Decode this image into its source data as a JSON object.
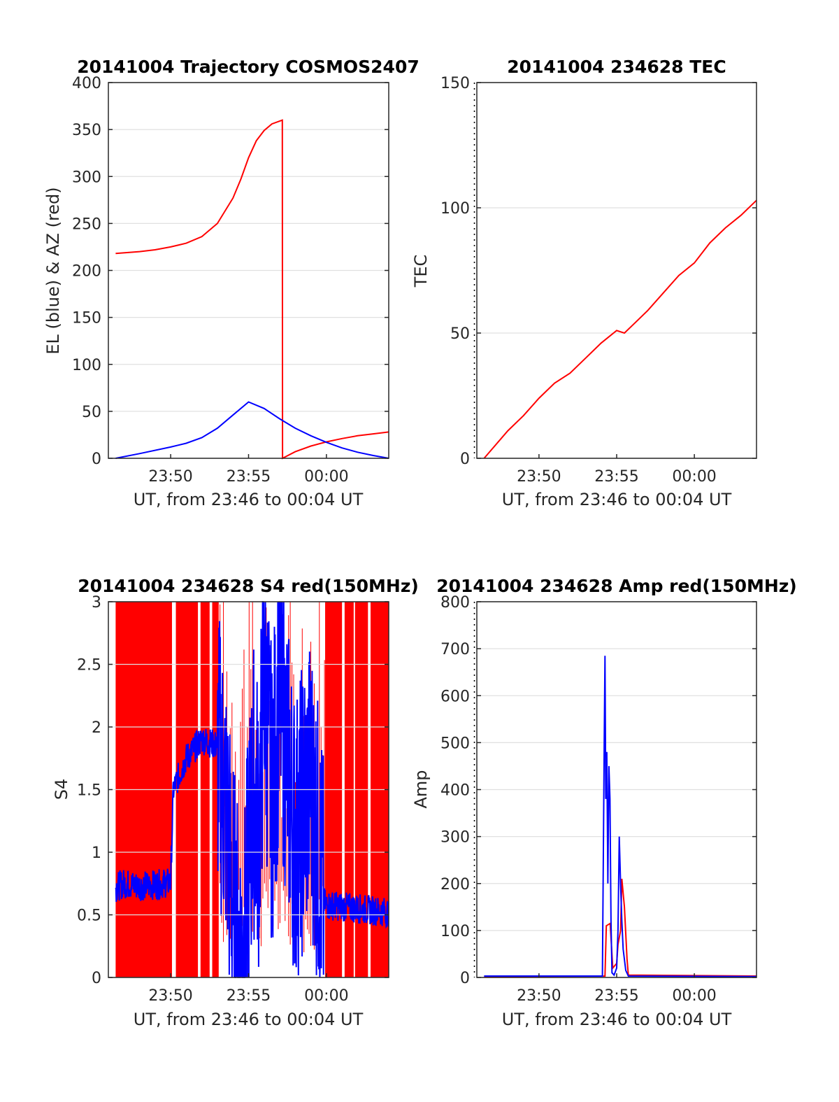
{
  "figure": {
    "background": "#ffffff"
  },
  "chart_data": [
    {
      "id": "trajectory",
      "type": "line",
      "title": "20141004 Trajectory COSMOS2407",
      "xlabel": "UT, from 23:46 to 00:04 UT",
      "ylabel": "EL (blue) & AZ (red)",
      "xlim": [
        "23:46",
        "00:04"
      ],
      "ylim": [
        0,
        400
      ],
      "yticks": [
        0,
        50,
        100,
        150,
        200,
        250,
        300,
        350,
        400
      ],
      "xticks": [
        "23:50",
        "23:55",
        "00:00"
      ],
      "x_grid_minutes": [
        23.5,
        24,
        25,
        26,
        27,
        28,
        29,
        30,
        31,
        32,
        33,
        34,
        35,
        36,
        37
      ],
      "grid": true,
      "series": [
        {
          "color": "#ff0000",
          "points": [
            [
              "23:46:28",
              218
            ],
            [
              "23:48",
              220
            ],
            [
              "23:49",
              222
            ],
            [
              "23:50",
              225
            ],
            [
              "23:51",
              229
            ],
            [
              "23:52",
              236
            ],
            [
              "23:53",
              250
            ],
            [
              "23:54",
              277
            ],
            [
              "23:54:30",
              297
            ],
            [
              "23:55",
              320
            ],
            [
              "23:55:30",
              338
            ],
            [
              "23:56",
              349
            ],
            [
              "23:56:30",
              356
            ],
            [
              "23:57:10",
              360
            ],
            [
              "23:57:11",
              0
            ],
            [
              "23:58",
              7
            ],
            [
              "23:59",
              13
            ],
            [
              "00:00",
              17.5
            ],
            [
              "00:01",
              21
            ],
            [
              "00:02",
              24
            ],
            [
              "00:03",
              26
            ],
            [
              "00:04",
              28
            ]
          ]
        },
        {
          "color": "#0000ff",
          "points": [
            [
              "23:46:28",
              0
            ],
            [
              "23:48",
              5
            ],
            [
              "23:50",
              12
            ],
            [
              "23:51",
              16
            ],
            [
              "23:52",
              22
            ],
            [
              "23:53",
              32
            ],
            [
              "23:54",
              46
            ],
            [
              "23:55",
              60
            ],
            [
              "23:56",
              53
            ],
            [
              "23:57",
              42
            ],
            [
              "23:58",
              32
            ],
            [
              "23:59",
              24
            ],
            [
              "00:00",
              17
            ],
            [
              "00:01",
              11
            ],
            [
              "00:02",
              6.5
            ],
            [
              "00:03",
              3
            ],
            [
              "00:04",
              0
            ]
          ]
        }
      ]
    },
    {
      "id": "tec",
      "type": "line",
      "title": "20141004 234628 TEC",
      "xlabel": "UT, from 23:46 to 00:04 UT",
      "ylabel": "TEC",
      "xlim": [
        "23:46",
        "00:04"
      ],
      "ylim": [
        0,
        150
      ],
      "yticks": [
        0,
        50,
        100,
        150
      ],
      "xticks": [
        "23:50",
        "23:55",
        "00:00"
      ],
      "x_grid_minutes": [
        23.5,
        24,
        25,
        26,
        27,
        28,
        29,
        30,
        31,
        32,
        33,
        34,
        35,
        36,
        37
      ],
      "grid": true,
      "series": [
        {
          "color": "#ff0000",
          "points": [
            [
              "23:46:28",
              0
            ],
            [
              "23:48",
              11
            ],
            [
              "23:49",
              17
            ],
            [
              "23:50",
              24
            ],
            [
              "23:51",
              30
            ],
            [
              "23:52",
              34
            ],
            [
              "23:53",
              40
            ],
            [
              "23:54",
              46
            ],
            [
              "23:55",
              51
            ],
            [
              "23:55:30",
              50
            ],
            [
              "23:56",
              53
            ],
            [
              "23:57",
              59
            ],
            [
              "23:58",
              66
            ],
            [
              "23:59",
              73
            ],
            [
              "00:00",
              78
            ],
            [
              "00:01",
              86
            ],
            [
              "00:02",
              92
            ],
            [
              "00:03",
              97
            ],
            [
              "00:04",
              103
            ]
          ]
        }
      ]
    },
    {
      "id": "s4",
      "type": "line",
      "title": "20141004 234628 S4 red(150MHz)",
      "xlabel": "UT, from 23:46 to 00:04 UT",
      "ylabel": "S4",
      "xlim": [
        "23:46",
        "00:04"
      ],
      "ylim": [
        0,
        3
      ],
      "yticks": [
        0,
        0.5,
        1,
        1.5,
        2,
        2.5,
        3
      ],
      "yticklabels": [
        "0",
        "0.5",
        "1",
        "1.5",
        "2",
        "2.5",
        "3"
      ],
      "xticks": [
        "23:50",
        "23:55",
        "00:00"
      ],
      "x_grid_minutes": [
        23.5,
        24,
        25,
        26,
        27,
        28,
        29,
        30,
        31,
        32,
        33,
        34,
        35,
        36,
        37
      ],
      "grid": true,
      "series": [
        {
          "color": "#ff0000",
          "style": "bands",
          "bands": [
            [
              "23:46:28",
              "23:50:05"
            ],
            [
              "23:50:20",
              "23:51:45"
            ],
            [
              "23:51:55",
              "23:52:30"
            ],
            [
              "23:52:40",
              "23:53:05"
            ],
            [
              "23:59:55",
              "00:01:00"
            ],
            [
              "00:01:10",
              "00:01:45"
            ],
            [
              "00:01:50",
              "00:02:40"
            ],
            [
              "00:02:50",
              "00:04"
            ]
          ]
        },
        {
          "color": "#0000ff",
          "style": "noisy",
          "points": [
            [
              "23:46:28",
              0.72
            ],
            [
              "23:47",
              0.75
            ],
            [
              "23:48",
              0.73
            ],
            [
              "23:49",
              0.74
            ],
            [
              "23:50",
              0.76
            ],
            [
              "23:50:10",
              1.5
            ],
            [
              "23:51",
              1.75
            ],
            [
              "23:52",
              1.9
            ],
            [
              "23:53",
              1.85
            ],
            [
              "23:53:30",
              1.4
            ],
            [
              "23:54",
              0.6
            ],
            [
              "23:54:20",
              0.25
            ],
            [
              "23:54:45",
              0.2
            ],
            [
              "23:55",
              0.9
            ],
            [
              "23:55:20",
              1.5
            ],
            [
              "23:55:40",
              1.2
            ],
            [
              "23:56:00",
              2.4
            ],
            [
              "23:56:30",
              1.4
            ],
            [
              "23:57:00",
              2.3
            ],
            [
              "23:58",
              1.1
            ],
            [
              "23:59",
              1.6
            ],
            [
              "23:59:50",
              0.6
            ],
            [
              "00:00",
              0.58
            ],
            [
              "00:02",
              0.55
            ],
            [
              "00:04",
              0.52
            ]
          ]
        }
      ]
    },
    {
      "id": "amp",
      "type": "line",
      "title": "20141004 234628 Amp red(150MHz)",
      "xlabel": "UT, from 23:46 to 00:04 UT",
      "ylabel": "Amp",
      "xlim": [
        "23:46",
        "00:04"
      ],
      "ylim": [
        0,
        800
      ],
      "yticks": [
        0,
        100,
        200,
        300,
        400,
        500,
        600,
        700,
        800
      ],
      "xticks": [
        "23:50",
        "23:55",
        "00:00"
      ],
      "x_grid_minutes": [
        23.5,
        24,
        25,
        26,
        27,
        28,
        29,
        30,
        31,
        32,
        33,
        34,
        35,
        36,
        37
      ],
      "grid": true,
      "series": [
        {
          "color": "#ff0000",
          "points": [
            [
              "23:46:28",
              2
            ],
            [
              "23:54:15",
              3
            ],
            [
              "23:54:20",
              110
            ],
            [
              "23:54:35",
              115
            ],
            [
              "23:54:45",
              20
            ],
            [
              "23:55:00",
              30
            ],
            [
              "23:55:05",
              70
            ],
            [
              "23:55:15",
              100
            ],
            [
              "23:55:20",
              210
            ],
            [
              "23:55:30",
              150
            ],
            [
              "23:55:40",
              40
            ],
            [
              "23:55:45",
              5
            ],
            [
              "00:04",
              3
            ]
          ]
        },
        {
          "color": "#0000ff",
          "points": [
            [
              "23:46:28",
              3
            ],
            [
              "23:54:05",
              3
            ],
            [
              "23:54:12",
              500
            ],
            [
              "23:54:15",
              685
            ],
            [
              "23:54:18",
              380
            ],
            [
              "23:54:22",
              480
            ],
            [
              "23:54:26",
              200
            ],
            [
              "23:54:30",
              450
            ],
            [
              "23:54:34",
              380
            ],
            [
              "23:54:38",
              120
            ],
            [
              "23:54:42",
              10
            ],
            [
              "23:54:50",
              5
            ],
            [
              "23:55:00",
              20
            ],
            [
              "23:55:05",
              100
            ],
            [
              "23:55:10",
              300
            ],
            [
              "23:55:15",
              200
            ],
            [
              "23:55:20",
              120
            ],
            [
              "23:55:25",
              60
            ],
            [
              "23:55:35",
              15
            ],
            [
              "23:55:45",
              3
            ],
            [
              "00:04",
              2
            ]
          ]
        }
      ]
    }
  ]
}
